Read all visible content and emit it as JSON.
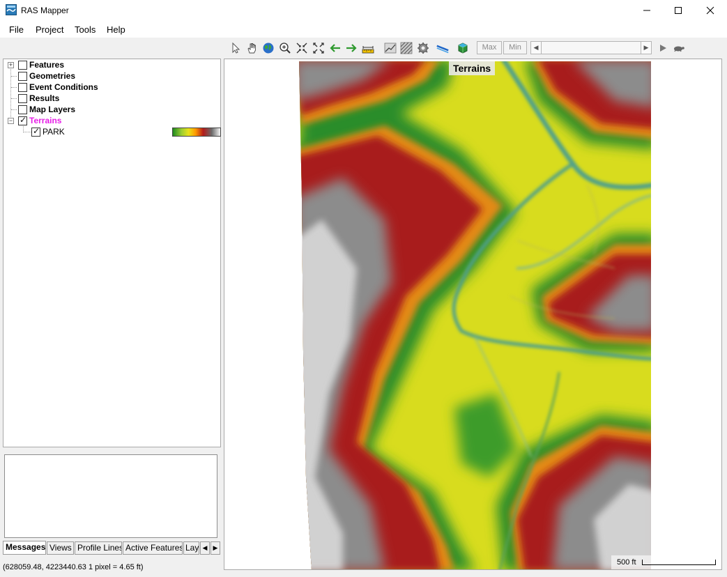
{
  "window": {
    "title": "RAS Mapper"
  },
  "menu": [
    "File",
    "Project",
    "Tools",
    "Help"
  ],
  "toolbar": {
    "max_label": "Max",
    "min_label": "Min"
  },
  "tree": {
    "items": [
      {
        "label": "Features",
        "checked": false
      },
      {
        "label": "Geometries",
        "checked": false
      },
      {
        "label": "Event Conditions",
        "checked": false
      },
      {
        "label": "Results",
        "checked": false
      },
      {
        "label": "Map Layers",
        "checked": false
      },
      {
        "label": "Terrains",
        "checked": true,
        "color": "#e61ee6"
      }
    ],
    "child": {
      "label": "PARK",
      "checked": true
    }
  },
  "tabs": [
    "Messages",
    "Views",
    "Profile Lines",
    "Active Features",
    "Lay"
  ],
  "status": {
    "text": "(628059.48, 4223440.63  1 pixel = 4.65 ft)"
  },
  "map": {
    "layer_label": "Terrains",
    "scale_label": "500 ft"
  },
  "colors": {
    "terrain_low": "#1f8a1f",
    "terrain_mid": "#e8e21a",
    "terrain_high": "#b31b1b",
    "terrain_peak": "#8a8a8a",
    "active_tree_label": "#e61ee6"
  }
}
